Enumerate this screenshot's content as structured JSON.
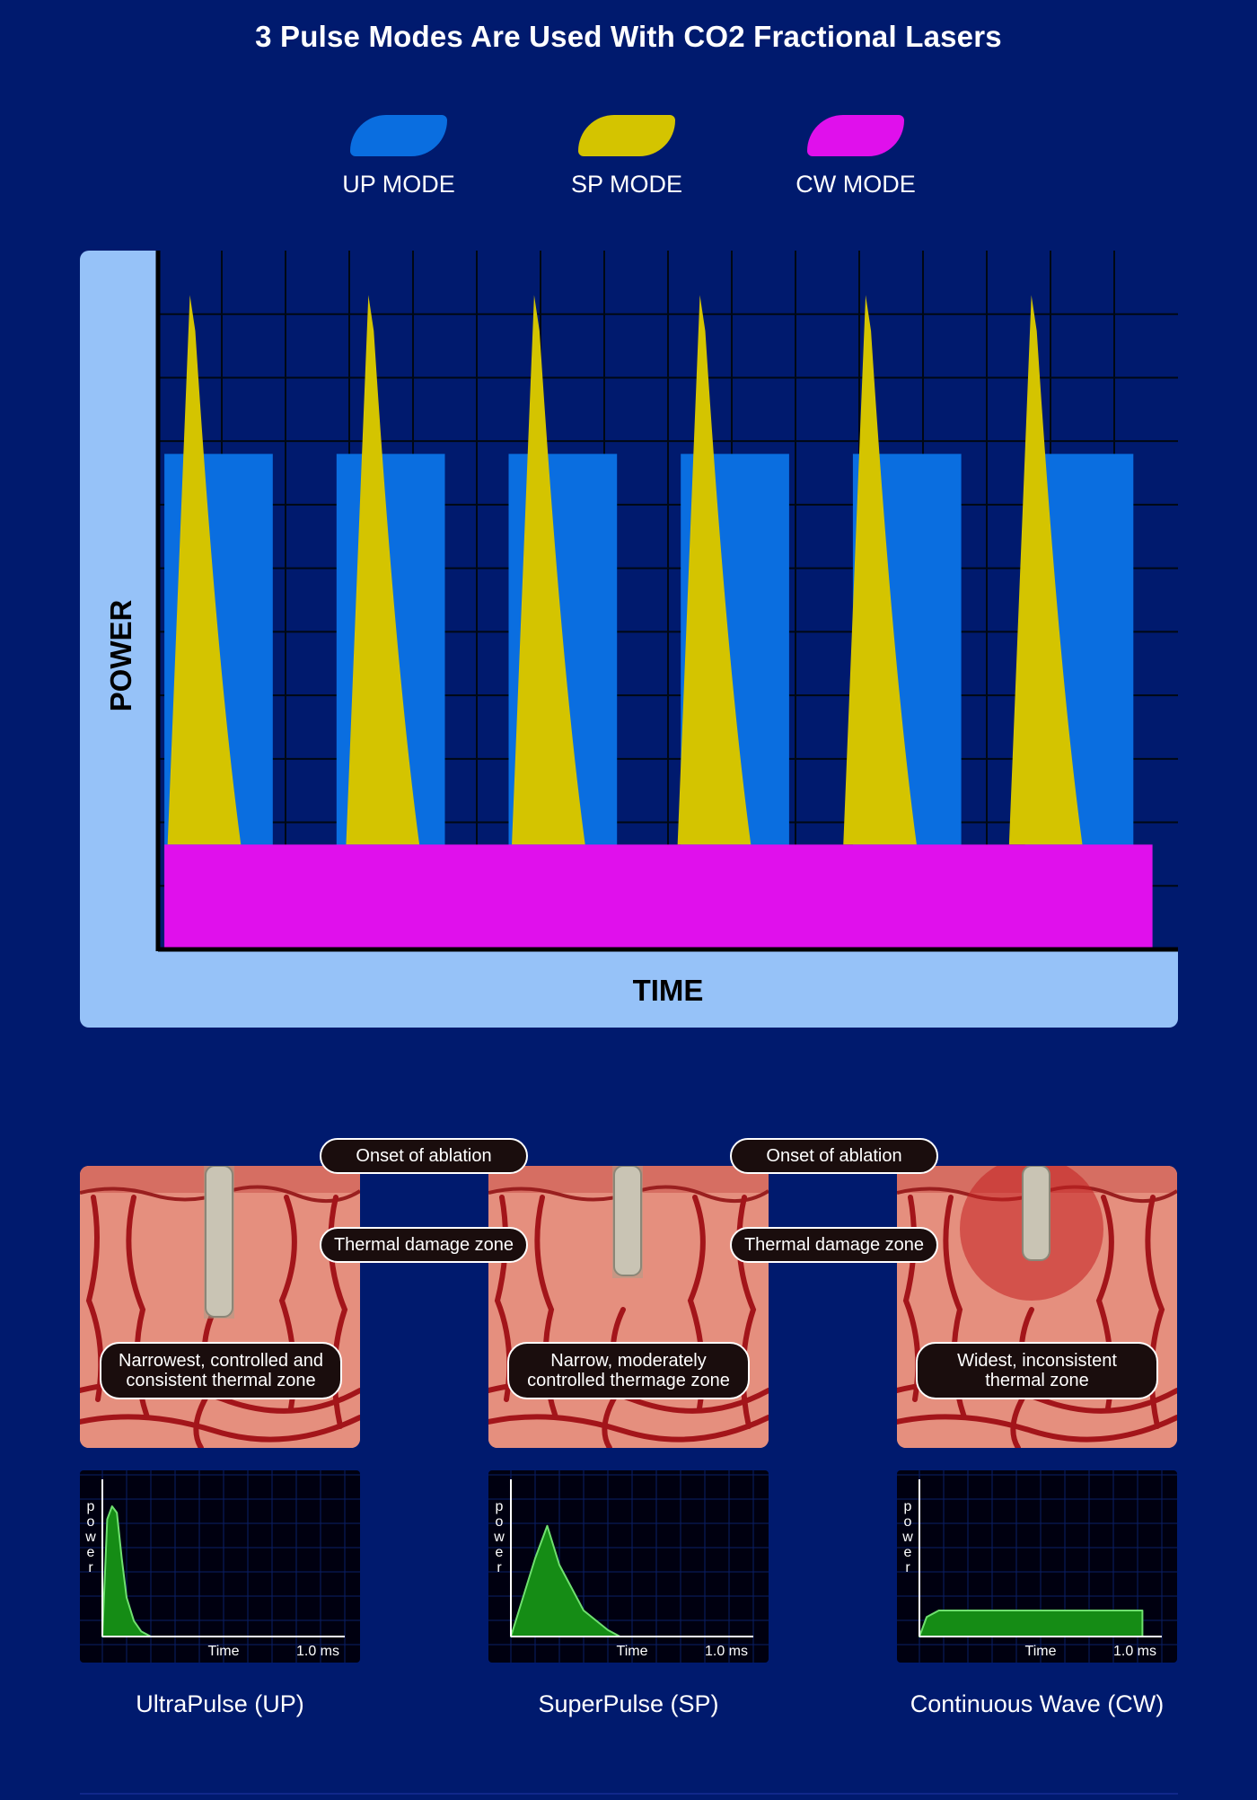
{
  "title": "3 Pulse Modes Are Used With CO2 Fractional Lasers",
  "legend": [
    {
      "label": "UP MODE",
      "color": "#0a6ee0"
    },
    {
      "label": "SP MODE",
      "color": "#d4c400"
    },
    {
      "label": "CW MODE",
      "color": "#e010ec"
    }
  ],
  "chart_data": {
    "type": "bar",
    "title": "3 Pulse Modes Are Used With CO2 Fractional Lasers",
    "xlabel": "TIME",
    "ylabel": "POWER",
    "ylim": [
      0,
      11
    ],
    "xlim": [
      0,
      16
    ],
    "grid": true,
    "legend_position": "top",
    "series": [
      {
        "name": "UP MODE",
        "kind": "rectangular pulses",
        "color": "#0a6ee0",
        "pulses": [
          {
            "start": 0.1,
            "end": 1.8
          },
          {
            "start": 2.8,
            "end": 4.5
          },
          {
            "start": 5.5,
            "end": 7.2
          },
          {
            "start": 8.2,
            "end": 9.9
          },
          {
            "start": 10.9,
            "end": 12.6
          },
          {
            "start": 13.6,
            "end": 15.3
          }
        ],
        "level": 7.8
      },
      {
        "name": "SP MODE",
        "kind": "spike pulses",
        "color": "#d4c400",
        "peaks": [
          {
            "t": 0.5,
            "start": 0.15,
            "end": 1.3
          },
          {
            "t": 3.3,
            "start": 2.95,
            "end": 4.1
          },
          {
            "t": 5.9,
            "start": 5.55,
            "end": 6.7
          },
          {
            "t": 8.5,
            "start": 8.15,
            "end": 9.3
          },
          {
            "t": 11.1,
            "start": 10.75,
            "end": 11.9
          },
          {
            "t": 13.7,
            "start": 13.35,
            "end": 14.5
          }
        ],
        "peak_level": 10.3
      },
      {
        "name": "CW MODE",
        "kind": "continuous",
        "color": "#e010ec",
        "start": 0.1,
        "end": 15.6,
        "level": 1.65
      }
    ]
  },
  "panels": [
    {
      "top_label": "Onset of ablation",
      "mid_label": "Thermal damage zone",
      "zone_text": "Narrowest, controlled and consistent thermal zone",
      "caption": "UltraPulse (UP)",
      "mini_chart": {
        "type": "area",
        "ylabel": "power",
        "xlabel": "Time",
        "x_end_label": "1.0 ms",
        "shape": "ultrapulse",
        "x": [
          0,
          0.02,
          0.04,
          0.06,
          0.08,
          0.1,
          0.13,
          0.16,
          0.2
        ],
        "y": [
          0,
          0.9,
          1.0,
          0.95,
          0.6,
          0.3,
          0.12,
          0.04,
          0
        ]
      }
    },
    {
      "top_label": "Onset of ablation",
      "mid_label": "Thermal damage zone",
      "zone_text": "Narrow, moderately controlled thermage zone",
      "caption": "SuperPulse (SP)",
      "mini_chart": {
        "type": "area",
        "ylabel": "power",
        "xlabel": "Time",
        "x_end_label": "1.0 ms",
        "shape": "superpulse",
        "x": [
          0,
          0.05,
          0.1,
          0.15,
          0.2,
          0.3,
          0.4,
          0.45
        ],
        "y": [
          0,
          0.3,
          0.6,
          0.85,
          0.55,
          0.2,
          0.05,
          0
        ]
      }
    },
    {
      "top_label": "",
      "mid_label": "",
      "zone_text": "Widest, inconsistent thermal zone",
      "caption": "Continuous Wave (CW)",
      "mini_chart": {
        "type": "area",
        "ylabel": "power",
        "xlabel": "Time",
        "x_end_label": "1.0 ms",
        "shape": "continuous",
        "x": [
          0,
          0.03,
          0.08,
          0.92
        ],
        "y": [
          0,
          0.15,
          0.2,
          0.2
        ]
      }
    }
  ]
}
